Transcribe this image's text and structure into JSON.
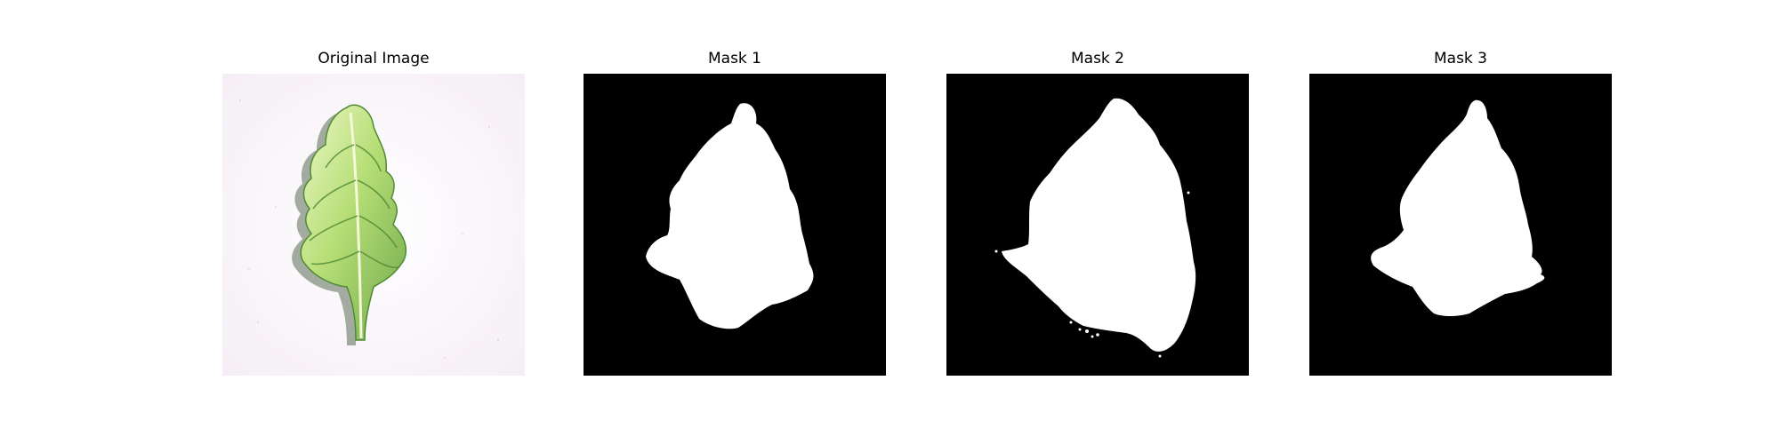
{
  "figure": {
    "panels": [
      {
        "title": "Original Image",
        "kind": "image"
      },
      {
        "title": "Mask 1",
        "kind": "mask"
      },
      {
        "title": "Mask 2",
        "kind": "mask"
      },
      {
        "title": "Mask 3",
        "kind": "mask"
      }
    ]
  },
  "colors": {
    "background": "#ffffff",
    "mask_background": "#000000",
    "mask_foreground": "#ffffff",
    "leaf_light": "#dff2a8",
    "leaf_mid": "#a8d66a",
    "leaf_dark": "#5e9a3c",
    "leaf_shadow": "#3c5a2a"
  }
}
